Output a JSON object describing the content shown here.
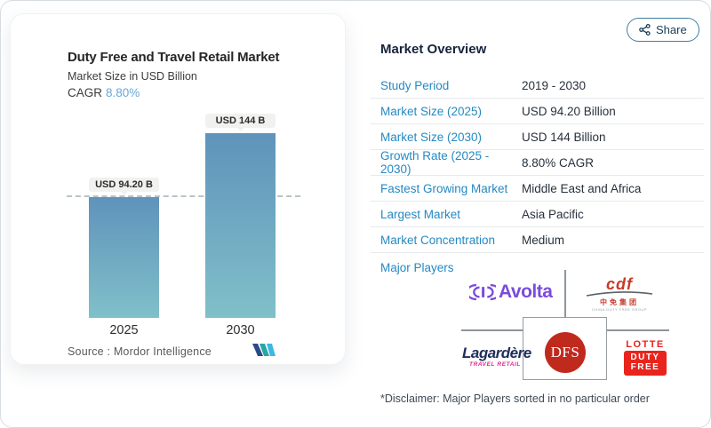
{
  "share": {
    "label": "Share"
  },
  "chart": {
    "title": "Duty Free and Travel Retail Market",
    "subtitle": "Market Size in USD Billion",
    "cagr_label": "CAGR",
    "cagr_value": "8.80%",
    "source": "Source : Mordor Intelligence",
    "bars": [
      {
        "year": "2025",
        "label": "USD 94.20 B"
      },
      {
        "year": "2030",
        "label": "USD 144 B"
      }
    ]
  },
  "chart_data": {
    "type": "bar",
    "categories": [
      "2025",
      "2030"
    ],
    "values": [
      94.2,
      144
    ],
    "value_labels": [
      "USD 94.20 B",
      "USD 144 B"
    ],
    "title": "Duty Free and Travel Retail Market",
    "subtitle": "Market Size in USD Billion",
    "unit": "USD Billion",
    "cagr": "8.80%",
    "reference_line": 94.2,
    "grid": false,
    "bar_color_top": "#5f93bb",
    "bar_color_bottom": "#80c0c9"
  },
  "overview": {
    "heading": "Market Overview",
    "rows": [
      {
        "label": "Study Period",
        "value": "2019 - 2030"
      },
      {
        "label": "Market Size (2025)",
        "value": "USD 94.20 Billion"
      },
      {
        "label": "Market Size (2030)",
        "value": "USD 144 Billion"
      },
      {
        "label": "Growth Rate (2025 - 2030)",
        "value": "8.80% CAGR"
      },
      {
        "label": "Fastest Growing Market",
        "value": "Middle East and Africa"
      },
      {
        "label": "Largest Market",
        "value": "Asia Pacific"
      },
      {
        "label": "Market Concentration",
        "value": "Medium"
      }
    ],
    "major_players_label": "Major Players",
    "players": [
      {
        "name": "Avolta"
      },
      {
        "name": "cdf",
        "subtext": "中免集团",
        "tiny": "CHINA DUTY FREE GROUP"
      },
      {
        "name": "Lagardère",
        "subtext": "TRAVEL RETAIL"
      },
      {
        "name": "DFS"
      },
      {
        "name": "LOTTE",
        "line1": "DUTY",
        "line2": "FREE"
      }
    ],
    "disclaimer": "*Disclaimer: Major Players sorted in no particular order"
  },
  "colors": {
    "accent_link": "#2589c2",
    "heading": "#16253e",
    "cagr_value": "#6aa7d8",
    "bar_top": "#5f93bb",
    "bar_bottom": "#80c0c9",
    "dashed_line": "#b9c3c9",
    "avolta_purple": "#7a4bdc",
    "cdf_red": "#c43b28",
    "lagardere_navy": "#1e2d5a",
    "lagardere_pink": "#e5228d",
    "dfs_red": "#bf2a1d",
    "lotte_red": "#e8241c",
    "share_border": "#3f7fa0"
  }
}
